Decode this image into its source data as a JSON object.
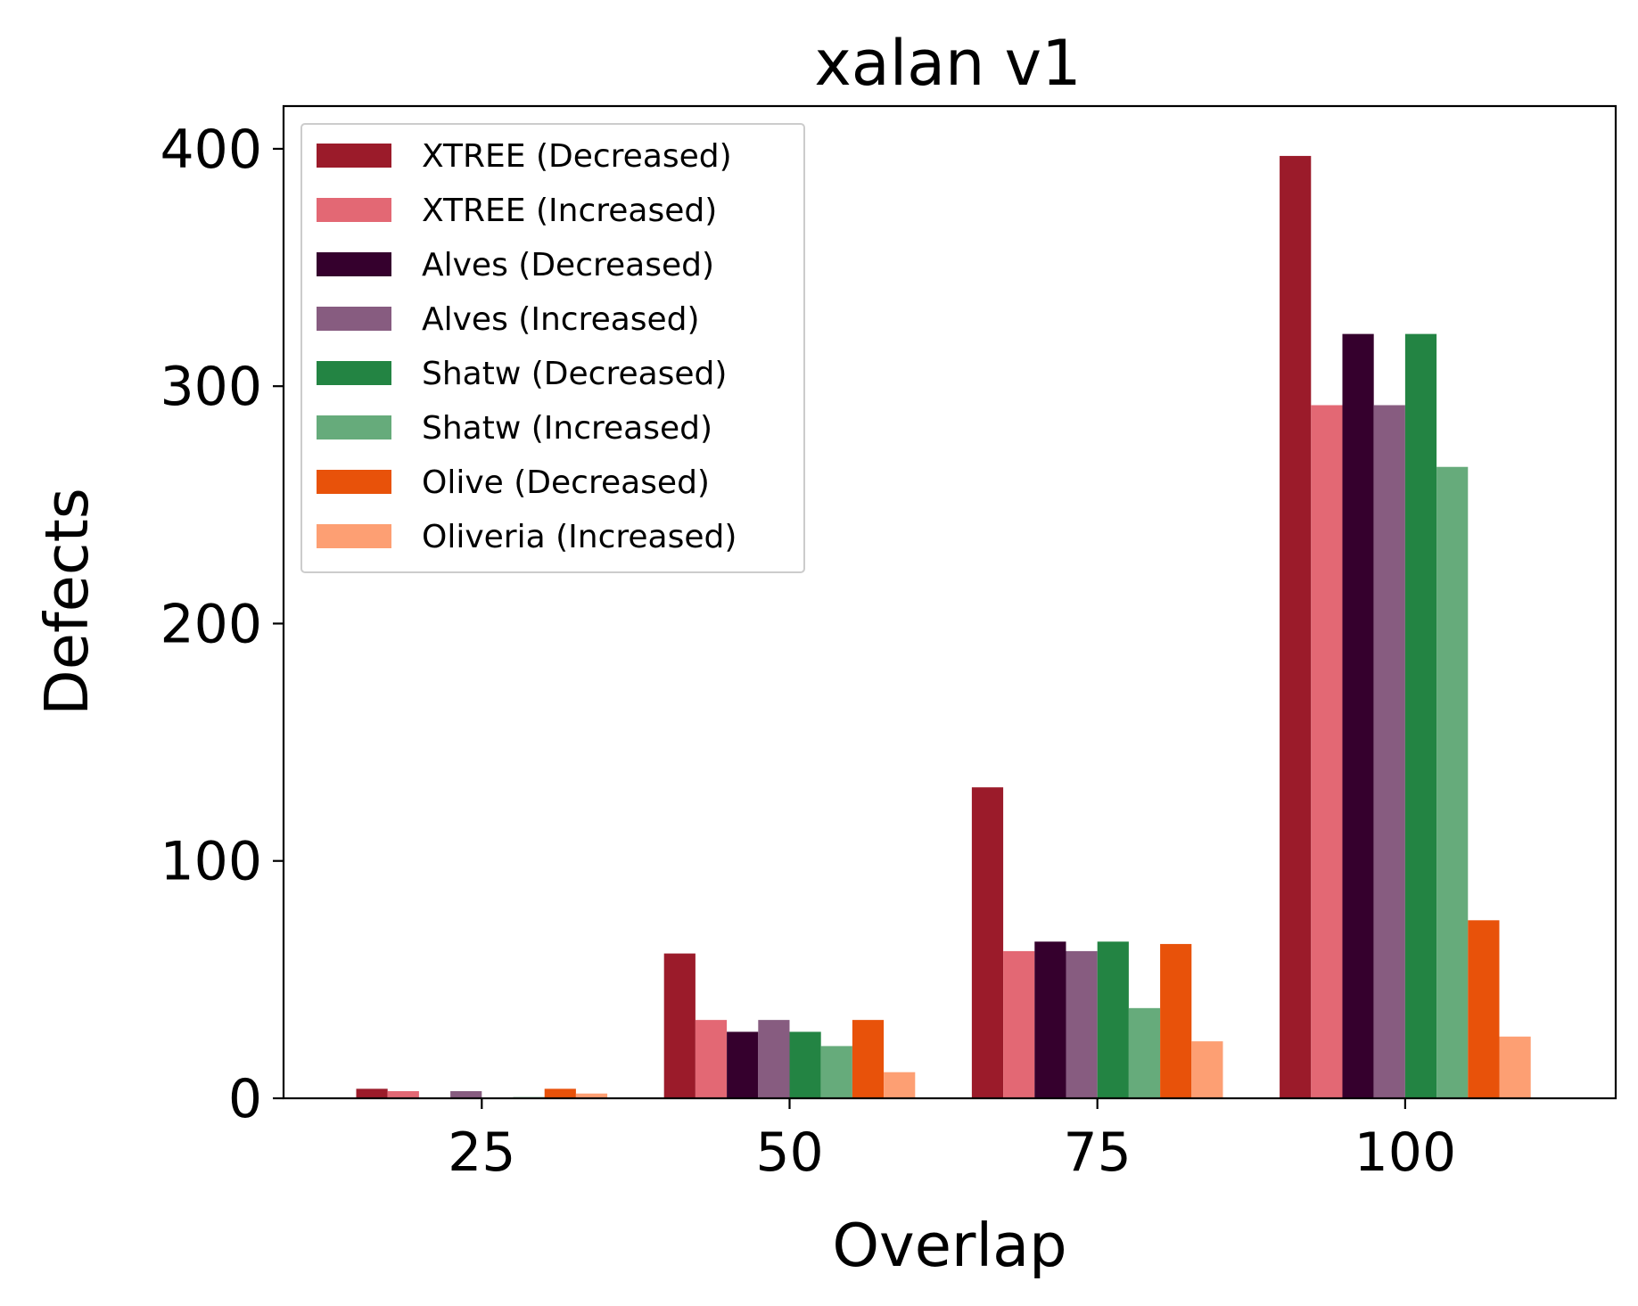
{
  "chart_data": {
    "type": "bar",
    "title": "xalan v1",
    "xlabel": "Overlap",
    "ylabel": "Defects",
    "categories": [
      "25",
      "50",
      "75",
      "100"
    ],
    "ylim": [
      0,
      418
    ],
    "yticks": [
      "0",
      "100",
      "200",
      "300",
      "400"
    ],
    "legend_position": "top-left",
    "grid": false,
    "series": [
      {
        "name": "XTREE (Decreased)",
        "color": "#9b1b2a",
        "values": [
          4,
          61,
          131,
          397
        ]
      },
      {
        "name": "XTREE (Increased)",
        "color": "#e36874",
        "values": [
          3,
          33,
          62,
          292
        ]
      },
      {
        "name": "Alves (Decreased)",
        "color": "#35002d",
        "values": [
          0,
          28,
          66,
          322
        ]
      },
      {
        "name": "Alves (Increased)",
        "color": "#875c80",
        "values": [
          3,
          33,
          62,
          292
        ]
      },
      {
        "name": "Shatw (Decreased)",
        "color": "#238443",
        "values": [
          0,
          28,
          66,
          322
        ]
      },
      {
        "name": "Shatw (Increased)",
        "color": "#66ab7b",
        "values": [
          0.5,
          22,
          38,
          266
        ]
      },
      {
        "name": "Olive (Decreased)",
        "color": "#e8520a",
        "values": [
          4,
          33,
          65,
          75
        ]
      },
      {
        "name": "Oliveria (Increased)",
        "color": "#fd9f73",
        "values": [
          2,
          11,
          24,
          26
        ]
      }
    ]
  }
}
